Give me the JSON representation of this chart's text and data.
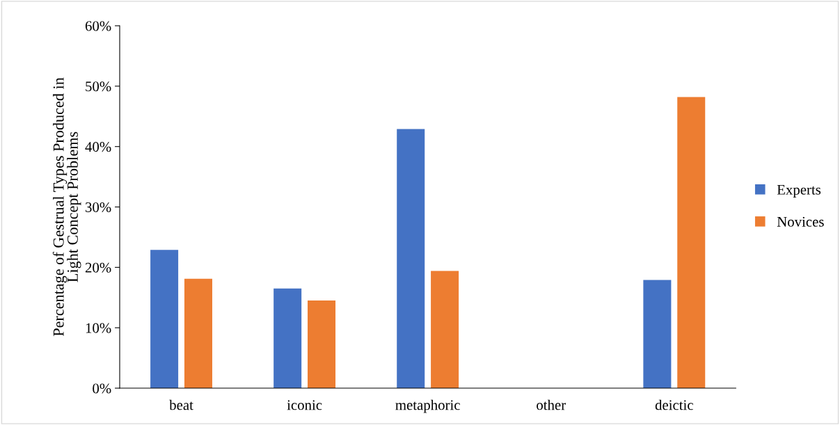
{
  "chart_data": {
    "type": "bar",
    "ylabel": "Percentage of Gestrual Types Produced in\nLight Concept Problems",
    "categories": [
      "beat",
      "iconic",
      "metaphoric",
      "other",
      "deictic"
    ],
    "series": [
      {
        "name": "Experts",
        "color": "#4472c4",
        "values": [
          22.9,
          16.5,
          42.9,
          0,
          17.9
        ]
      },
      {
        "name": "Novices",
        "color": "#ed7d31",
        "values": [
          18.1,
          14.5,
          19.4,
          0,
          48.2
        ]
      }
    ],
    "ylim": [
      0,
      60
    ],
    "yticks": [
      {
        "value": 0,
        "label": "0%"
      },
      {
        "value": 10,
        "label": "10%"
      },
      {
        "value": 20,
        "label": "20%"
      },
      {
        "value": 30,
        "label": "30%"
      },
      {
        "value": 40,
        "label": "40%"
      },
      {
        "value": 50,
        "label": "50%"
      },
      {
        "value": 60,
        "label": "60%"
      }
    ],
    "grid": false,
    "legend": "right"
  }
}
